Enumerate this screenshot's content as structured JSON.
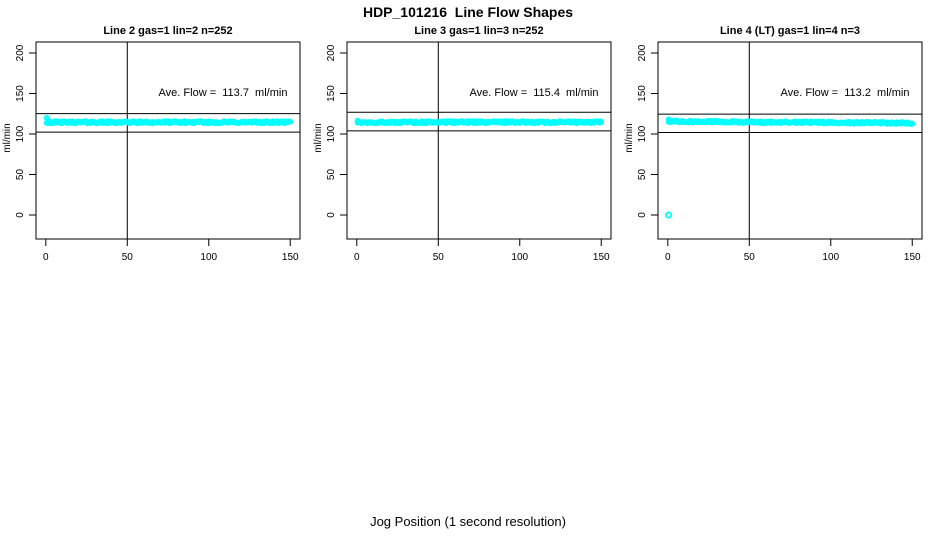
{
  "figure": {
    "title": "HDP_101216  Line Flow Shapes",
    "xlabel": "Jog Position (1 second resolution)",
    "background_color": "#ffffff",
    "point_color": "#00ffff",
    "line_color": "#000000",
    "text_color": "#000000"
  },
  "chart_data": [
    {
      "type": "scatter",
      "title": "Line 2 gas=1 lin=2 n=252",
      "annotation": "Ave. Flow =  113.7  ml/min",
      "ave_flow_ml_min": 113.7,
      "n": 252,
      "ylabel": "ml/min",
      "xlim": [
        0,
        150
      ],
      "ylim": [
        0,
        200
      ],
      "x_ticks": [
        0,
        50,
        100,
        150
      ],
      "y_ticks": [
        0,
        50,
        100,
        150,
        200
      ],
      "grid": false,
      "reference_lines": {
        "vertical_x": 50,
        "horizontal": [
          125.1,
          102.3
        ]
      },
      "band": {
        "x_start": 0.5,
        "x_end": 150,
        "n_points": 252,
        "y_center": 114.5,
        "y_jitter": 1.3,
        "y_drift": 0,
        "start_points": [
          [
            0.5,
            120
          ],
          [
            1.1,
            118
          ],
          [
            1.8,
            116.5
          ]
        ]
      },
      "outliers": []
    },
    {
      "type": "scatter",
      "title": "Line 3 gas=1 lin=3 n=252",
      "annotation": "Ave. Flow =  115.4  ml/min",
      "ave_flow_ml_min": 115.4,
      "n": 252,
      "ylabel": "ml/min",
      "xlim": [
        0,
        150
      ],
      "ylim": [
        0,
        200
      ],
      "x_ticks": [
        0,
        50,
        100,
        150
      ],
      "y_ticks": [
        0,
        50,
        100,
        150,
        200
      ],
      "grid": false,
      "reference_lines": {
        "vertical_x": 50,
        "horizontal": [
          126.9,
          103.9
        ]
      },
      "band": {
        "x_start": 0.5,
        "x_end": 150,
        "n_points": 252,
        "y_center": 114.6,
        "y_jitter": 1.3,
        "y_drift": 0,
        "start_points": [
          [
            0.5,
            116.5
          ]
        ]
      },
      "outliers": []
    },
    {
      "type": "scatter",
      "title": "Line 4 (LT) gas=1 lin=4 n=3",
      "annotation": "Ave. Flow =  113.2  ml/min",
      "ave_flow_ml_min": 113.2,
      "n": 3,
      "ylabel": "ml/min",
      "xlim": [
        0,
        150
      ],
      "ylim": [
        0,
        200
      ],
      "x_ticks": [
        0,
        50,
        100,
        150
      ],
      "y_ticks": [
        0,
        50,
        100,
        150,
        200
      ],
      "grid": false,
      "reference_lines": {
        "vertical_x": 50,
        "horizontal": [
          124.5,
          101.9
        ]
      },
      "band": {
        "x_start": 0.5,
        "x_end": 150,
        "n_points": 252,
        "y_center": 115.5,
        "y_jitter": 1.2,
        "y_drift": -2,
        "start_points": [
          [
            0.5,
            118
          ],
          [
            1.2,
            117
          ]
        ]
      },
      "outliers": [
        [
          0.5,
          0
        ]
      ]
    }
  ]
}
